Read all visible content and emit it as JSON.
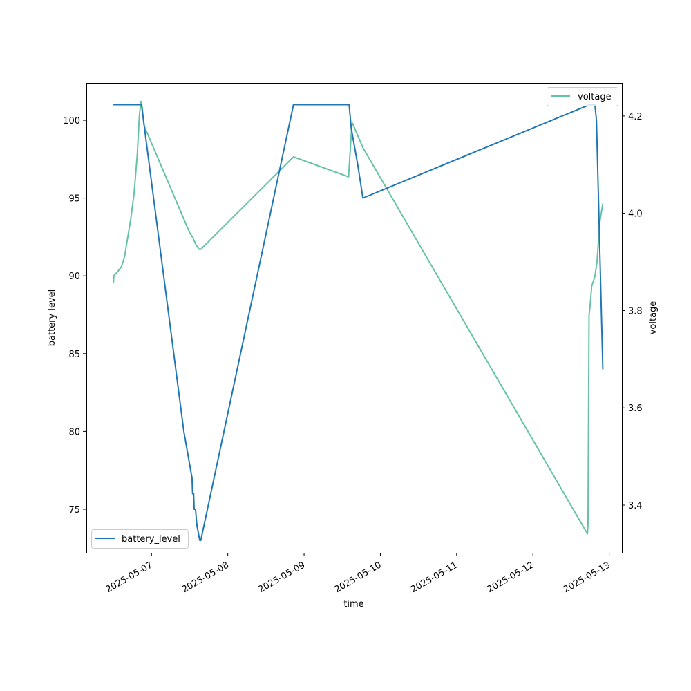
{
  "chart_data": {
    "type": "line",
    "xlabel": "time",
    "ylabel_left": "battery level",
    "ylabel_right": "voltage",
    "x_axis": {
      "type": "date",
      "range": [
        "2025-05-06T03:30",
        "2025-05-13T04:00"
      ],
      "ticks": [
        "2025-05-07",
        "2025-05-08",
        "2025-05-09",
        "2025-05-10",
        "2025-05-11",
        "2025-05-12",
        "2025-05-13"
      ]
    },
    "y_left": {
      "range": [
        72.2,
        102.4
      ],
      "ticks": [
        75,
        80,
        85,
        90,
        95,
        100
      ]
    },
    "y_right": {
      "range": [
        3.302,
        4.268
      ],
      "ticks": [
        3.4,
        3.6,
        3.8,
        4.0,
        4.2
      ]
    },
    "legends": {
      "battery": "lower-left",
      "voltage": "upper-right"
    },
    "grid": false,
    "series": [
      {
        "name": "battery_level",
        "axis": "left",
        "color": "#1f77b4",
        "points": [
          [
            "2025-05-06T12:00",
            101
          ],
          [
            "2025-05-06T19:55",
            101
          ],
          [
            "2025-05-06T20:50",
            101
          ],
          [
            "2025-05-07T10:10",
            80
          ],
          [
            "2025-05-07T12:45",
            77
          ],
          [
            "2025-05-07T12:55",
            76
          ],
          [
            "2025-05-07T13:15",
            76
          ],
          [
            "2025-05-07T13:25",
            75
          ],
          [
            "2025-05-07T13:50",
            75
          ],
          [
            "2025-05-07T14:15",
            74
          ],
          [
            "2025-05-07T15:10",
            73
          ],
          [
            "2025-05-07T15:30",
            73
          ],
          [
            "2025-05-08T20:40",
            101
          ],
          [
            "2025-05-09T14:10",
            101
          ],
          [
            "2025-05-09T14:50",
            99.5
          ],
          [
            "2025-05-09T17:00",
            97
          ],
          [
            "2025-05-09T18:30",
            95
          ],
          [
            "2025-05-12T17:50",
            101
          ],
          [
            "2025-05-12T19:30",
            101
          ],
          [
            "2025-05-12T20:00",
            100
          ],
          [
            "2025-05-12T22:00",
            84
          ]
        ]
      },
      {
        "name": "voltage",
        "axis": "right",
        "color": "#66c2a5",
        "points": [
          [
            "2025-05-06T12:00",
            3.856
          ],
          [
            "2025-05-06T12:10",
            3.872
          ],
          [
            "2025-05-06T13:20",
            3.88
          ],
          [
            "2025-05-06T14:30",
            3.89
          ],
          [
            "2025-05-06T15:30",
            3.91
          ],
          [
            "2025-05-06T16:30",
            3.95
          ],
          [
            "2025-05-06T17:30",
            3.99
          ],
          [
            "2025-05-06T18:30",
            4.04
          ],
          [
            "2025-05-06T19:30",
            4.12
          ],
          [
            "2025-05-06T20:10",
            4.2
          ],
          [
            "2025-05-06T20:40",
            4.23
          ],
          [
            "2025-05-06T21:00",
            4.22
          ],
          [
            "2025-05-06T21:40",
            4.18
          ],
          [
            "2025-05-07T12:00",
            3.96
          ],
          [
            "2025-05-07T13:00",
            3.95
          ],
          [
            "2025-05-07T14:00",
            3.935
          ],
          [
            "2025-05-07T15:00",
            3.926
          ],
          [
            "2025-05-07T15:30",
            3.926
          ],
          [
            "2025-05-08T20:40",
            4.116
          ],
          [
            "2025-05-09T14:00",
            4.075
          ],
          [
            "2025-05-09T15:00",
            4.18
          ],
          [
            "2025-05-09T15:15",
            4.185
          ],
          [
            "2025-05-09T18:30",
            4.135
          ],
          [
            "2025-05-12T17:10",
            3.341
          ],
          [
            "2025-05-12T17:20",
            3.36
          ],
          [
            "2025-05-12T17:40",
            3.79
          ],
          [
            "2025-05-12T18:00",
            3.81
          ],
          [
            "2025-05-12T18:30",
            3.85
          ],
          [
            "2025-05-12T19:30",
            3.87
          ],
          [
            "2025-05-12T20:10",
            3.9
          ],
          [
            "2025-05-12T21:00",
            3.98
          ],
          [
            "2025-05-12T22:00",
            4.02
          ]
        ]
      }
    ]
  }
}
